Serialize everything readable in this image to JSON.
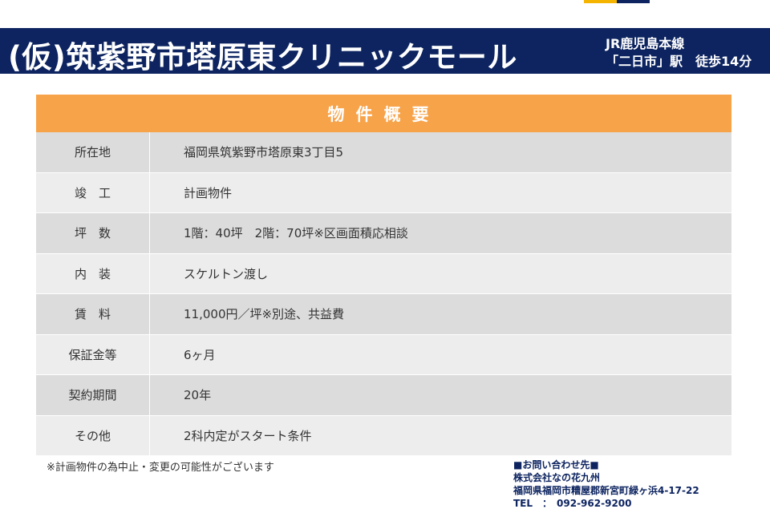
{
  "header": {
    "title": "(仮)筑紫野市塔原東クリニックモール",
    "access_line1": "JR鹿児島本線",
    "access_line2": "「二日市」駅　徒歩14分"
  },
  "table": {
    "heading": "物件概要",
    "rows": [
      {
        "label": "所在地",
        "value": "福岡県筑紫野市塔原東3丁目5"
      },
      {
        "label": "竣　工",
        "value": "計画物件"
      },
      {
        "label": "坪　数",
        "value": "1階：40坪　2階：70坪※区画面積応相談"
      },
      {
        "label": "内　装",
        "value": "スケルトン渡し"
      },
      {
        "label": "賃　料",
        "value": "11,000円／坪※別途、共益費"
      },
      {
        "label": "保証金等",
        "value": "6ヶ月"
      },
      {
        "label": "契約期間",
        "value": "20年"
      },
      {
        "label": "その他",
        "value": "2科内定がスタート条件"
      }
    ]
  },
  "note": "※計画物件の為中止・変更の可能性がございます",
  "contact": {
    "heading": "■お問い合わせ先■",
    "company": "株式会社なの花九州",
    "address": "福岡県福岡市糟屋郡新宮町緑ヶ浜4-17-22",
    "tel": "TEL　：　092-962-9200"
  },
  "colors": {
    "navy": "#0d2460",
    "orange": "#f7a34a",
    "row_dark": "#dcdcdc",
    "row_light": "#ededed"
  }
}
